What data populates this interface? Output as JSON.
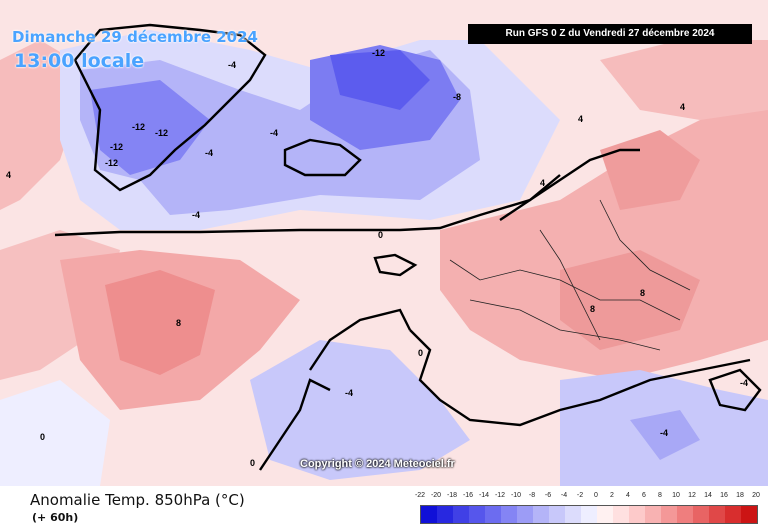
{
  "header": {
    "date": "Dimanche 29 décembre 2024",
    "time": "13:00 locale",
    "run": "Run GFS 0 Z du Vendredi 27 décembre 2024"
  },
  "copyright": "Copyright © 2024 Meteociel.fr",
  "legend": {
    "title": "Anomalie Temp. 850hPa (°C)",
    "subtitle": "(+ 60h)",
    "ticks": [
      "-22",
      "-20",
      "-18",
      "-16",
      "-14",
      "-12",
      "-10",
      "-8",
      "-6",
      "-4",
      "-2",
      "0",
      "2",
      "4",
      "6",
      "8",
      "10",
      "12",
      "14",
      "16",
      "18",
      "20"
    ],
    "colors": [
      "#1010d8",
      "#2828e0",
      "#4040e6",
      "#5656ec",
      "#6c6cf0",
      "#8484f4",
      "#9c9cf6",
      "#b4b4f8",
      "#c8c8fa",
      "#dcdcfc",
      "#eeeeff",
      "#fff1f1",
      "#ffe0e0",
      "#fdcaca",
      "#f8b2b2",
      "#f49898",
      "#ef7e7e",
      "#e86464",
      "#e04848",
      "#d82e2e",
      "#cc1414"
    ]
  },
  "contour_labels": [
    "-12",
    "-12",
    "-12",
    "-12",
    "-12",
    "-8",
    "-4",
    "-4",
    "-4",
    "-4",
    "0",
    "0",
    "4",
    "4",
    "4",
    "4",
    "8",
    "8",
    "8",
    "-4",
    "-4",
    "-4",
    "0",
    "0"
  ]
}
